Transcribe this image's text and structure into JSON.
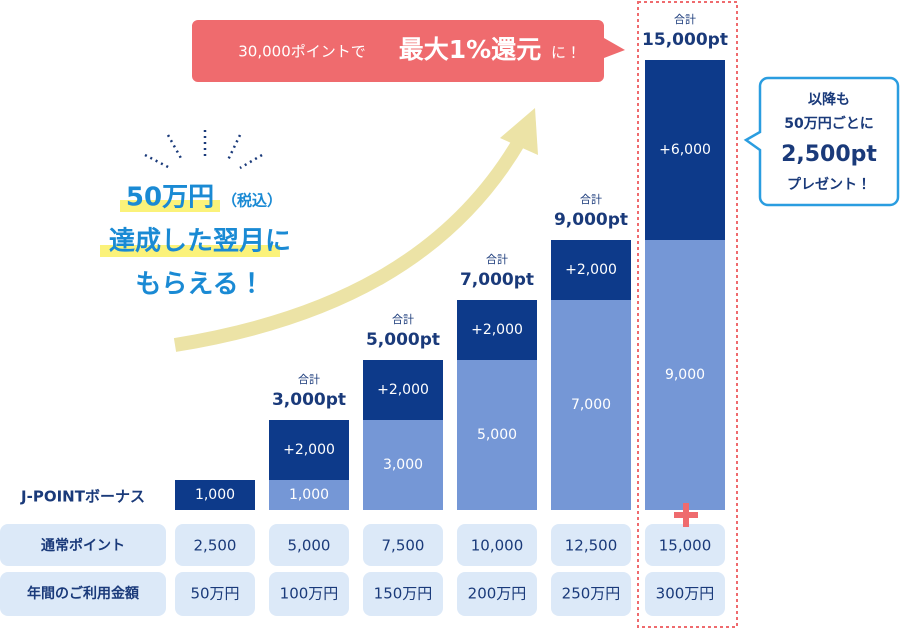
{
  "chart_data": {
    "type": "stacked-bar",
    "categories": [
      "50万円",
      "100万円",
      "150万円",
      "200万円",
      "250万円",
      "300万円"
    ],
    "category_header": "年間のご利用金額",
    "bonus_label": "J-POINTボーナス",
    "series": [
      {
        "color": "#7597d6",
        "values": [
          null,
          1000,
          3000,
          5000,
          7000,
          9000
        ],
        "value_labels": [
          null,
          "1,000",
          "3,000",
          "5,000",
          "7,000",
          "9,000"
        ]
      },
      {
        "color": "#0d3a8a",
        "values": [
          1000,
          2000,
          2000,
          2000,
          2000,
          6000
        ],
        "value_labels": [
          "1,000",
          "+2,000",
          "+2,000",
          "+2,000",
          "+2,000",
          "+6,000"
        ]
      }
    ],
    "ylim": [
      0,
      15000
    ],
    "total_caption": "合計",
    "totals": [
      null,
      3000,
      5000,
      7000,
      9000,
      15000
    ],
    "total_labels": [
      null,
      "3,000pt",
      "5,000pt",
      "7,000pt",
      "9,000pt",
      "15,000pt"
    ],
    "normal_points": {
      "label": "通常ポイント",
      "values": [
        2500,
        5000,
        7500,
        10000,
        12500,
        15000
      ],
      "value_labels": [
        "2,500",
        "5,000",
        "7,500",
        "10,000",
        "12,500",
        "15,000"
      ]
    }
  },
  "banner": {
    "parts": [
      "30,000ポイントで",
      "最大1%還元",
      "に！"
    ]
  },
  "headline": {
    "amount": "50万円",
    "note": "（税込）",
    "lines": [
      "達成した翌月に",
      "もらえる！"
    ]
  },
  "bubble": {
    "lines": [
      "以降も",
      "50万円ごとに",
      "2,500pt",
      "プレゼント！"
    ]
  }
}
